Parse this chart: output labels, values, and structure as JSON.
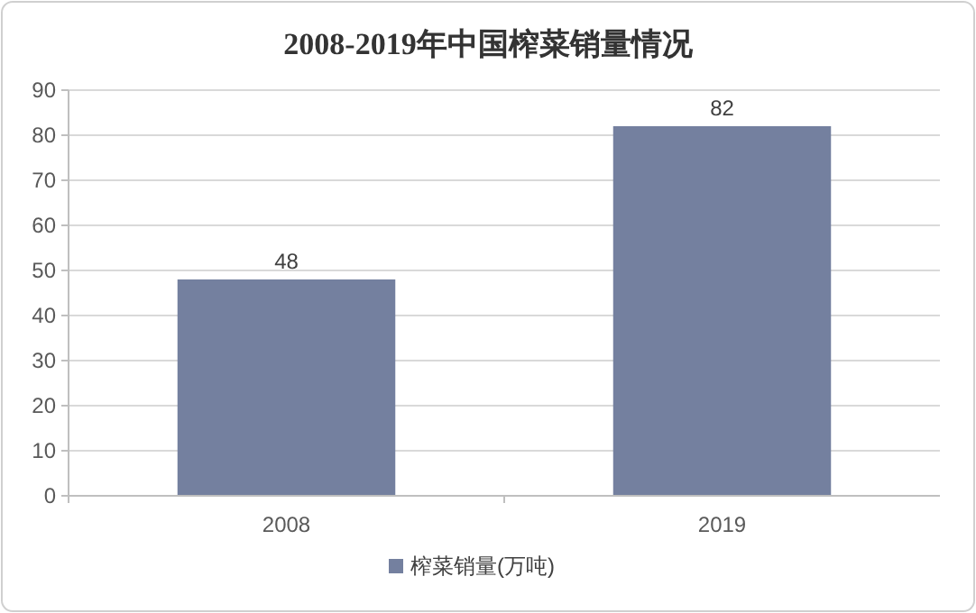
{
  "chart_data": {
    "type": "bar",
    "title": "2008-2019年中国榨菜销量情况",
    "categories": [
      "2008",
      "2019"
    ],
    "series": [
      {
        "name": "榨菜销量(万吨)",
        "color": "#74809f",
        "values": [
          48,
          82
        ]
      }
    ],
    "ylim": [
      0,
      90
    ],
    "yticks": [
      0,
      10,
      20,
      30,
      40,
      50,
      60,
      70,
      80,
      90
    ],
    "grid": "y",
    "legend": "bottom",
    "data_labels": true
  }
}
